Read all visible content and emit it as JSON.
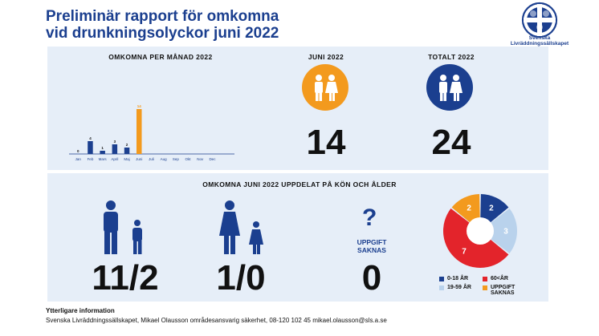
{
  "header": {
    "title_line1": "Preliminär rapport för omkomna",
    "title_line2": "vid drunkningsolyckor juni 2022",
    "org_name_line1": "Svenska",
    "org_name_line2": "Livräddningssällskapet",
    "logo_letters": "S L S"
  },
  "top": {
    "monthly_heading": "OMKOMNA PER MÅNAD 2022",
    "june_heading": "JUNI 2022",
    "total_heading": "TOTALT 2022",
    "june_value": "14",
    "total_value": "24"
  },
  "bottom": {
    "heading": "OMKOMNA JUNI 2022 UPPDELAT PÅ KÖN OCH ÅLDER",
    "male_value": "11/2",
    "female_value": "1/0",
    "missing_symbol": "?",
    "missing_label_line1": "UPPGIFT",
    "missing_label_line2": "SAKNAS",
    "missing_value": "0"
  },
  "chart_data": [
    {
      "type": "bar",
      "title": "OMKOMNA PER MÅNAD 2022",
      "categories": [
        "Jan",
        "Feb",
        "Mars",
        "April",
        "Maj",
        "Juni",
        "Juli",
        "Aug",
        "Sep",
        "Okt",
        "Nov",
        "Dec"
      ],
      "values": [
        0,
        4,
        1,
        3,
        2,
        14,
        null,
        null,
        null,
        null,
        null,
        null
      ],
      "value_labels": [
        "0",
        "4",
        "1",
        "3",
        "2",
        "14",
        "",
        "",
        "",
        "",
        "",
        ""
      ],
      "highlight_category": "Juni",
      "ylim": [
        0,
        14
      ],
      "colors": {
        "default": "#1b3f8f",
        "highlight": "#f39a1e"
      },
      "grid": false
    },
    {
      "type": "pie",
      "labels": [
        "0-18 ÅR",
        "19-59 ÅR",
        "60<ÅR",
        "UPPGIFT SAKNAS"
      ],
      "values": [
        2,
        3,
        7,
        2
      ],
      "value_labels": [
        "2",
        "3",
        "7",
        "2"
      ],
      "colors": [
        "#1b3f8f",
        "#b9d2ec",
        "#e3242b",
        "#f39a1e"
      ],
      "legend_position": "bottom"
    }
  ],
  "footer": {
    "heading": "Ytterligare information",
    "text": "Svenska Livräddningssällskapet, Mikael Olausson områdesansvarig säkerhet, 08-120 102 45 mikael.olausson@sls.a.se"
  },
  "colors": {
    "navy": "#1b3f8f",
    "orange": "#f39a1e",
    "red": "#e3242b",
    "light_blue": "#b9d2ec",
    "panel": "#e6eef8"
  },
  "icons": [
    "male-icon",
    "female-icon",
    "question-icon",
    "logo-icon"
  ]
}
